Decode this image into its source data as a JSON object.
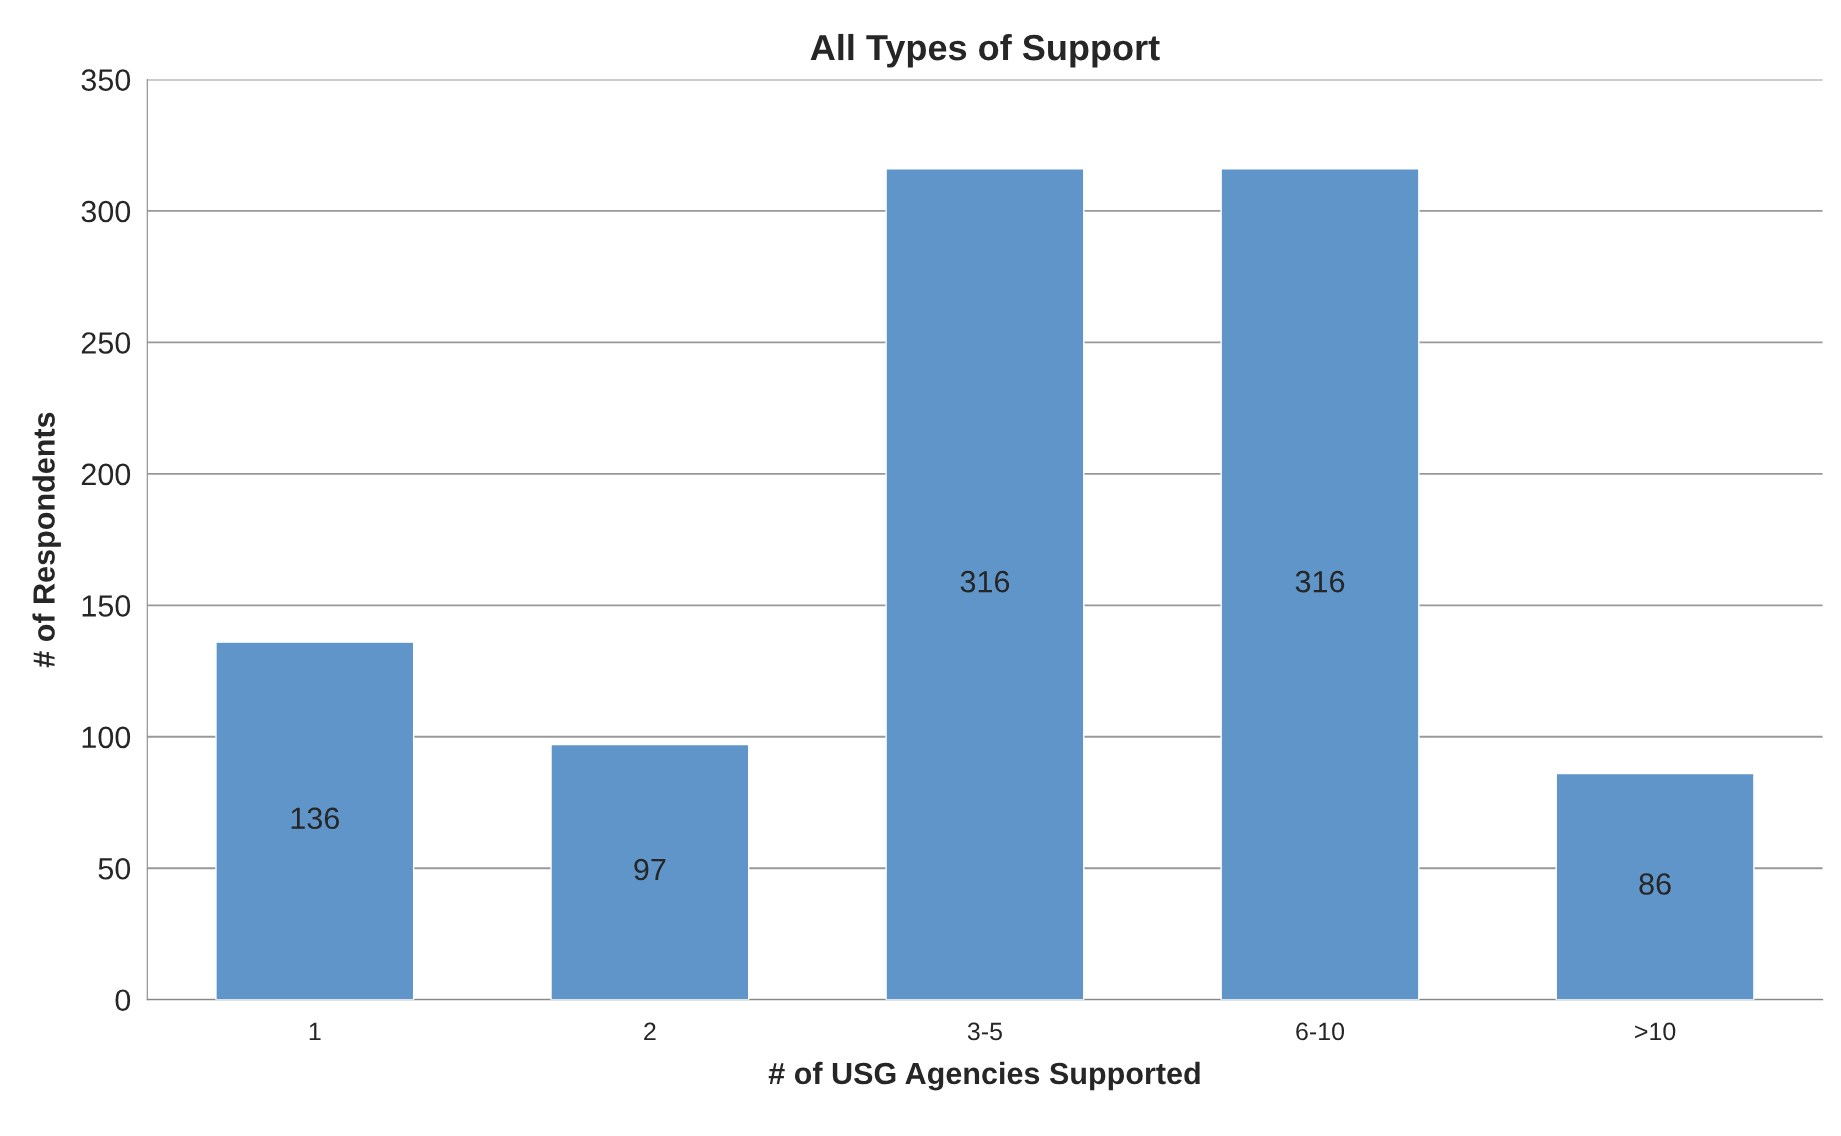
{
  "chart_data": {
    "type": "bar",
    "title": "All Types of Support",
    "xlabel": "# of USG Agencies Supported",
    "ylabel": "# of Respondents",
    "categories": [
      "1",
      "2",
      "3-5",
      "6-10",
      ">10"
    ],
    "values": [
      136,
      97,
      316,
      316,
      86
    ],
    "color": "#5f95c8",
    "ylim": [
      0,
      350
    ],
    "yticks": [
      0,
      50,
      100,
      150,
      200,
      250,
      300,
      350
    ],
    "grid": "y",
    "data_labels": true
  }
}
